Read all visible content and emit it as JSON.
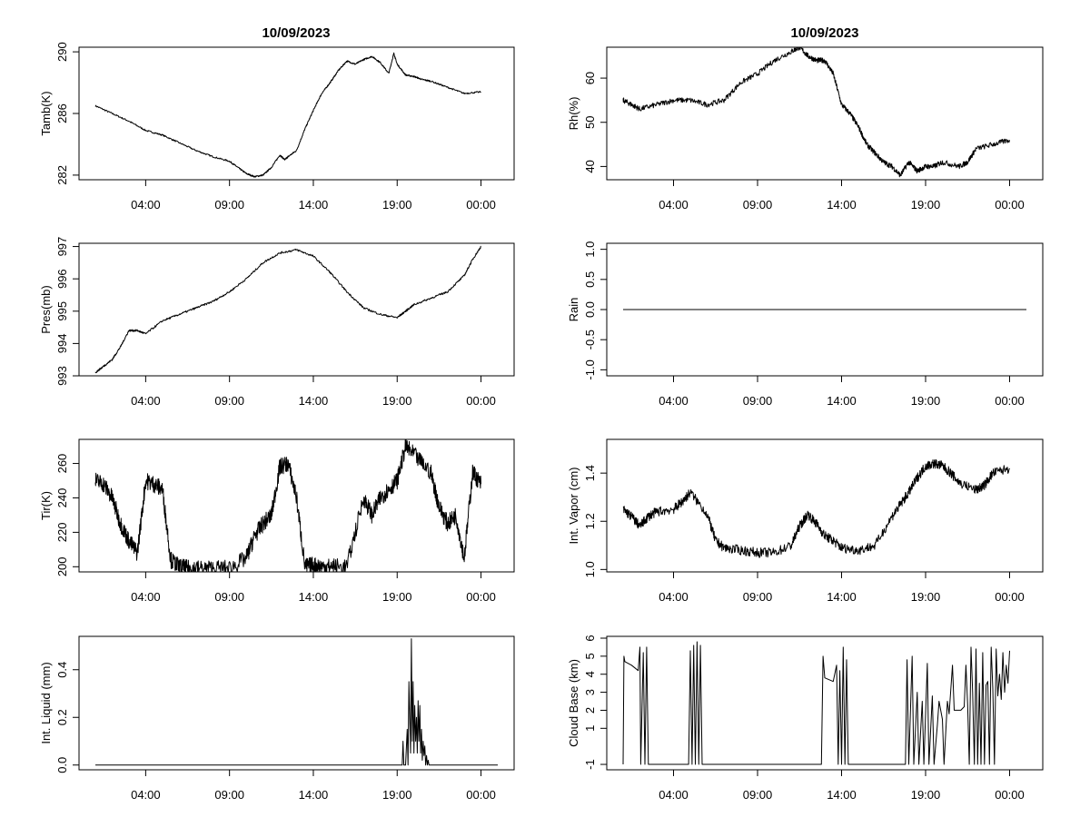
{
  "figure": {
    "left_title": "10/09/2023",
    "right_title": "10/09/2023"
  },
  "chart_data": [
    {
      "type": "line",
      "id": "tamb",
      "ylabel": "Tamb(K)",
      "xlim": [
        0,
        24
      ],
      "ylim": [
        281.7,
        290.3
      ],
      "yticks": [
        282,
        286,
        290
      ],
      "ytick_labels": [
        "282",
        "286",
        "290"
      ],
      "xticks": [
        3,
        8,
        13,
        18,
        23
      ],
      "xtick_labels": [
        "04:00",
        "09:00",
        "14:00",
        "19:00",
        "00:00"
      ],
      "noise": 0.05,
      "x": [
        0,
        1,
        2,
        3,
        4,
        5,
        6,
        7,
        8,
        8.5,
        9,
        9.5,
        10,
        10.5,
        11,
        11.3,
        11.5,
        12,
        12.5,
        13,
        13.5,
        14,
        14.5,
        15,
        15.5,
        16,
        16.5,
        17,
        17.5,
        17.8,
        18,
        18.5,
        19,
        19.5,
        20,
        21,
        22,
        23
      ],
      "y": [
        286.5,
        286.0,
        285.5,
        284.9,
        284.6,
        284.1,
        283.6,
        283.2,
        282.9,
        282.5,
        282.1,
        281.9,
        282.0,
        282.5,
        283.3,
        283.0,
        283.2,
        283.6,
        285.0,
        286.2,
        287.3,
        288.0,
        288.8,
        289.4,
        289.2,
        289.5,
        289.7,
        289.3,
        288.6,
        289.9,
        289.2,
        288.5,
        288.4,
        288.2,
        288.1,
        287.7,
        287.3,
        287.4
      ]
    },
    {
      "type": "line",
      "id": "rh",
      "ylabel": "Rh(%)",
      "xlim": [
        0,
        24
      ],
      "ylim": [
        37,
        67
      ],
      "yticks": [
        40,
        50,
        60
      ],
      "ytick_labels": [
        "40",
        "50",
        "60"
      ],
      "xticks": [
        3,
        8,
        13,
        18,
        23
      ],
      "xtick_labels": [
        "04:00",
        "09:00",
        "14:00",
        "19:00",
        "00:00"
      ],
      "noise": 0.6,
      "x": [
        0,
        0.5,
        1,
        2,
        3,
        4,
        5,
        6,
        7,
        8,
        9,
        10,
        10.5,
        11,
        11.5,
        12,
        12.5,
        13,
        13.5,
        14,
        14.5,
        15,
        15.5,
        16,
        16.5,
        17,
        17.5,
        18,
        18.5,
        19,
        20,
        20.5,
        21,
        22,
        23
      ],
      "y": [
        55,
        54,
        53,
        54,
        55,
        55,
        54,
        55,
        59,
        61,
        64,
        66,
        67,
        65,
        64,
        64,
        61,
        54,
        52,
        49,
        45,
        43,
        41,
        40,
        38,
        41,
        39,
        40,
        40,
        41,
        40,
        41,
        44,
        45,
        46
      ]
    },
    {
      "type": "line",
      "id": "pres",
      "ylabel": "Pres(mb)",
      "xlim": [
        0,
        24
      ],
      "ylim": [
        993,
        997.1
      ],
      "yticks": [
        993,
        994,
        995,
        996,
        997
      ],
      "ytick_labels": [
        "993",
        "994",
        "995",
        "996",
        "997"
      ],
      "xticks": [
        3,
        8,
        13,
        18,
        23
      ],
      "xtick_labels": [
        "04:00",
        "09:00",
        "14:00",
        "19:00",
        "00:00"
      ],
      "noise": 0.03,
      "x": [
        0,
        0.5,
        1,
        1.5,
        2,
        2.5,
        3,
        4,
        5,
        6,
        7,
        8,
        9,
        10,
        11,
        12,
        13,
        14,
        15,
        16,
        17,
        18,
        18.5,
        19,
        20,
        21,
        22,
        22.5,
        23
      ],
      "y": [
        993.1,
        993.3,
        993.5,
        993.9,
        994.4,
        994.4,
        994.3,
        994.7,
        994.9,
        995.1,
        995.3,
        995.6,
        996.0,
        996.5,
        996.8,
        996.9,
        996.7,
        996.2,
        995.6,
        995.1,
        994.9,
        994.8,
        995.0,
        995.2,
        995.4,
        995.6,
        996.1,
        996.6,
        997.0
      ]
    },
    {
      "type": "line",
      "id": "rain",
      "ylabel": "Rain",
      "xlim": [
        0,
        24
      ],
      "ylim": [
        -1.1,
        1.1
      ],
      "yticks": [
        -1.0,
        -0.5,
        0.0,
        0.5,
        1.0
      ],
      "ytick_labels": [
        "-1.0",
        "-0.5",
        "0.0",
        "0.5",
        "1.0"
      ],
      "xticks": [
        3,
        8,
        13,
        18,
        23
      ],
      "xtick_labels": [
        "04:00",
        "09:00",
        "14:00",
        "19:00",
        "00:00"
      ],
      "noise": 0,
      "x": [
        0,
        24
      ],
      "y": [
        0,
        0
      ]
    },
    {
      "type": "line",
      "id": "tir",
      "ylabel": "Tir(K)",
      "xlim": [
        0,
        24
      ],
      "ylim": [
        197,
        274
      ],
      "yticks": [
        200,
        220,
        240,
        260
      ],
      "ytick_labels": [
        "200",
        "220",
        "240",
        "260"
      ],
      "xticks": [
        3,
        8,
        13,
        18,
        23
      ],
      "xtick_labels": [
        "04:00",
        "09:00",
        "14:00",
        "19:00",
        "00:00"
      ],
      "noise": 5,
      "x": [
        0,
        0.5,
        1,
        1.5,
        2,
        2.5,
        3,
        3.5,
        4,
        4.5,
        5,
        5.5,
        6,
        7,
        8,
        9,
        9.5,
        10,
        10.5,
        11,
        11.5,
        12,
        12.5,
        13,
        13.5,
        14,
        15,
        16,
        16.5,
        17,
        17.5,
        18,
        18.5,
        19,
        20,
        20.5,
        21,
        21.5,
        22,
        22.5,
        23
      ],
      "y": [
        250,
        248,
        240,
        225,
        215,
        208,
        250,
        248,
        245,
        204,
        200,
        199,
        199,
        199,
        199,
        205,
        218,
        225,
        230,
        258,
        260,
        240,
        200,
        201,
        200,
        200,
        200,
        240,
        230,
        240,
        245,
        250,
        270,
        265,
        255,
        235,
        225,
        230,
        205,
        255,
        248
      ]
    },
    {
      "type": "line",
      "id": "vapor",
      "ylabel": "Int. Vapor (cm)",
      "xlim": [
        0,
        24
      ],
      "ylim": [
        0.99,
        1.54
      ],
      "yticks": [
        1.0,
        1.2,
        1.4
      ],
      "ytick_labels": [
        "1.0",
        "1.2",
        "1.4"
      ],
      "xticks": [
        3,
        8,
        13,
        18,
        23
      ],
      "xtick_labels": [
        "04:00",
        "09:00",
        "14:00",
        "19:00",
        "00:00"
      ],
      "noise": 0.02,
      "x": [
        0,
        0.5,
        1,
        1.5,
        2,
        3,
        3.5,
        4,
        5,
        5.5,
        6,
        7,
        8,
        9,
        10,
        10.5,
        11,
        11.5,
        12,
        12.5,
        13,
        14,
        15,
        16,
        16.5,
        17,
        17.5,
        18,
        18.5,
        19,
        19.5,
        20,
        21,
        21.5,
        22,
        23
      ],
      "y": [
        1.25,
        1.22,
        1.18,
        1.22,
        1.24,
        1.25,
        1.28,
        1.32,
        1.23,
        1.12,
        1.09,
        1.08,
        1.07,
        1.07,
        1.1,
        1.18,
        1.23,
        1.19,
        1.14,
        1.12,
        1.09,
        1.08,
        1.1,
        1.22,
        1.27,
        1.32,
        1.38,
        1.43,
        1.44,
        1.43,
        1.4,
        1.36,
        1.33,
        1.35,
        1.4,
        1.42
      ]
    },
    {
      "type": "line",
      "id": "liquid",
      "ylabel": "Int. Liquid (mm)",
      "xlim": [
        0,
        24
      ],
      "ylim": [
        -0.02,
        0.54
      ],
      "yticks": [
        0.0,
        0.2,
        0.4
      ],
      "ytick_labels": [
        "0.0",
        "0.2",
        "0.4"
      ],
      "xticks": [
        3,
        8,
        13,
        18,
        23
      ],
      "xtick_labels": [
        "04:00",
        "09:00",
        "14:00",
        "19:00",
        "00:00"
      ],
      "noise": 0,
      "x": [
        0,
        18.3,
        18.35,
        18.4,
        18.5,
        18.6,
        18.65,
        18.7,
        18.8,
        18.85,
        18.9,
        18.95,
        19.0,
        19.05,
        19.1,
        19.15,
        19.2,
        19.25,
        19.3,
        19.35,
        19.4,
        19.45,
        19.5,
        19.55,
        19.6,
        19.65,
        19.7,
        19.75,
        19.8,
        19.85,
        19.9,
        24
      ],
      "y": [
        0,
        0,
        0.1,
        0,
        0,
        0.15,
        0,
        0.35,
        0.05,
        0.53,
        0.1,
        0.35,
        0.05,
        0.25,
        0.1,
        0.2,
        0.05,
        0.27,
        0.1,
        0.25,
        0.05,
        0.15,
        0.02,
        0.1,
        0.04,
        0.08,
        0,
        0.04,
        0,
        0.02,
        0,
        0
      ]
    },
    {
      "type": "line",
      "id": "cloud",
      "ylabel": "Cloud Base (km)",
      "xlim": [
        0,
        24
      ],
      "ylim": [
        -1.3,
        6.1
      ],
      "yticks": [
        -1,
        1,
        2,
        3,
        4,
        5,
        6
      ],
      "ytick_labels": [
        "-1",
        "1",
        "2",
        "3",
        "4",
        "5",
        "6"
      ],
      "xticks": [
        3,
        8,
        13,
        18,
        23
      ],
      "xtick_labels": [
        "04:00",
        "09:00",
        "14:00",
        "19:00",
        "00:00"
      ],
      "noise": 0,
      "x": [
        0,
        0.05,
        0.1,
        0.5,
        0.9,
        1.0,
        1.05,
        1.2,
        1.3,
        1.4,
        1.5,
        1.6,
        1.7,
        1.8,
        1.9,
        2.0,
        2.1,
        2.2,
        2.3,
        2.4,
        2.5,
        3.9,
        4.0,
        4.1,
        4.2,
        4.3,
        4.4,
        4.5,
        4.6,
        4.7,
        4.8,
        4.9,
        5.0,
        5.1,
        5.2,
        11.8,
        11.9,
        12.0,
        12.5,
        12.7,
        12.8,
        12.9,
        13.0,
        13.1,
        13.2,
        13.3,
        13.4,
        13.5,
        13.6,
        13.7,
        13.8,
        16.8,
        16.9,
        17.0,
        17.2,
        17.3,
        17.5,
        17.6,
        17.8,
        17.9,
        18.1,
        18.2,
        18.4,
        18.5,
        18.7,
        18.8,
        19.0,
        19.1,
        19.3,
        19.4,
        19.6,
        19.7,
        19.9,
        20.0,
        20.1,
        20.3,
        20.4,
        20.5,
        20.6,
        20.7,
        20.8,
        20.9,
        21.0,
        21.1,
        21.2,
        21.3,
        21.4,
        21.5,
        21.6,
        21.7,
        21.8,
        21.9,
        22.0,
        22.1,
        22.2,
        22.3,
        22.4,
        22.5,
        22.6,
        22.7,
        22.8,
        22.9,
        23.0
      ],
      "y": [
        -1,
        5,
        4.7,
        4.5,
        4.2,
        5.5,
        -1,
        5.2,
        -1,
        5.5,
        -1,
        -1,
        -1,
        -1,
        -1,
        -1,
        -1,
        -1,
        -1,
        -1,
        -1,
        -1,
        5.3,
        -1,
        5.6,
        -1,
        5.8,
        -1,
        5.6,
        -1,
        -1,
        -1,
        -1,
        -1,
        -1,
        -1,
        5,
        3.8,
        3.6,
        4.5,
        -1,
        4.2,
        -1,
        5.5,
        -1,
        4.8,
        -1,
        -1,
        -1,
        -1,
        -1,
        -1,
        4.8,
        -1,
        5,
        -1,
        3,
        -1,
        2.5,
        -1,
        4.6,
        -1,
        2.8,
        -1,
        1.2,
        2.5,
        1.5,
        -1,
        2.5,
        1.8,
        4.5,
        2,
        2,
        2,
        2,
        2.2,
        4.5,
        2.3,
        -1,
        5.5,
        3,
        -1,
        5.4,
        -1,
        3.5,
        -1,
        5.2,
        -1,
        3.4,
        3.6,
        -1,
        5.5,
        3.2,
        -1,
        5.4,
        2.8,
        4,
        2.6,
        5.2,
        3,
        4.5,
        3.5,
        5.3
      ]
    }
  ]
}
